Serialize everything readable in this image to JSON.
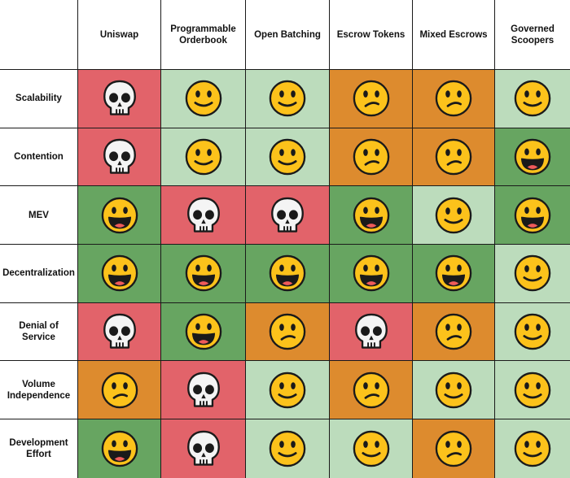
{
  "chart_data": {
    "type": "table",
    "columns": [
      "Uniswap",
      "Programmable Orderbook",
      "Open Batching",
      "Escrow Tokens",
      "Mixed Escrows",
      "Governed Scoopers"
    ],
    "rows": [
      {
        "label": "Scalability",
        "ratings": [
          "skull",
          "smile",
          "smile",
          "worried",
          "worried",
          "smile"
        ]
      },
      {
        "label": "Contention",
        "ratings": [
          "skull",
          "smile",
          "smile",
          "worried",
          "worried",
          "grin"
        ]
      },
      {
        "label": "MEV",
        "ratings": [
          "grin",
          "skull",
          "skull",
          "grin",
          "smile",
          "grin"
        ]
      },
      {
        "label": "Decentralization",
        "ratings": [
          "grin",
          "grin",
          "grin",
          "grin",
          "grin",
          "smile"
        ]
      },
      {
        "label": "Denial of Service",
        "ratings": [
          "skull",
          "grin",
          "worried",
          "skull",
          "worried",
          "smile"
        ]
      },
      {
        "label": "Volume Independence",
        "ratings": [
          "worried",
          "skull",
          "smile",
          "worried",
          "smile",
          "smile"
        ]
      },
      {
        "label": "Development Effort",
        "ratings": [
          "grin",
          "skull",
          "smile",
          "smile",
          "worried",
          "smile"
        ]
      }
    ],
    "rating_scale": [
      "grin",
      "smile",
      "worried",
      "skull"
    ],
    "rating_colors": {
      "grin": "#67a561",
      "smile": "#bcdcbc",
      "worried": "#dd8b2e",
      "skull": "#e2636a"
    },
    "rating_icons": {
      "grin": "grinning-face-icon",
      "smile": "slightly-smiling-face-icon",
      "worried": "confused-face-icon",
      "skull": "skull-icon"
    }
  }
}
